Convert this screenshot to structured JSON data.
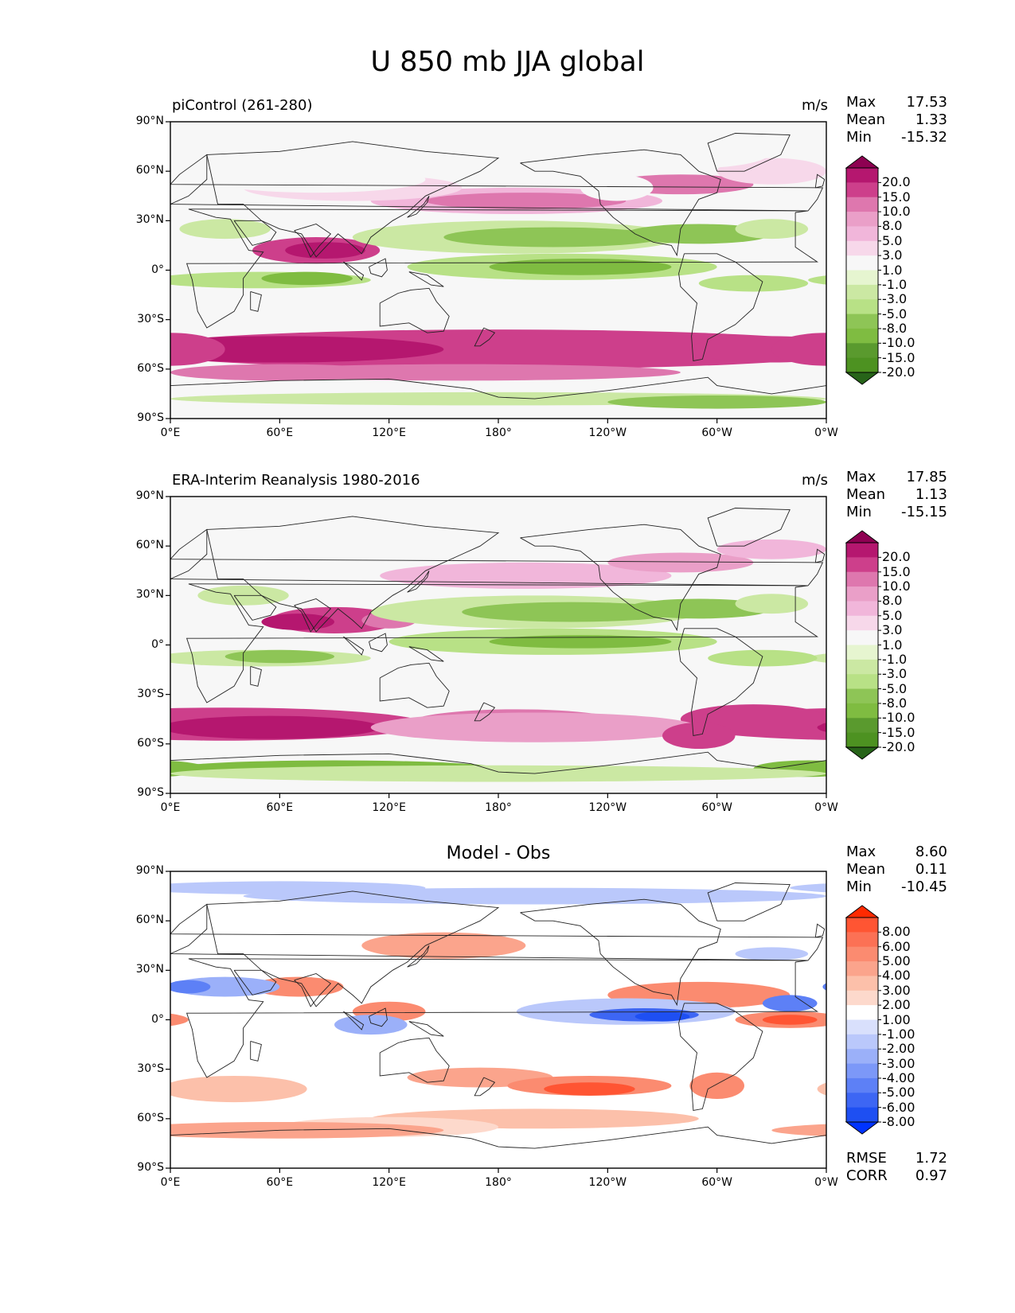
{
  "suptitle": "U 850 mb JJA global",
  "lat_ticks": [
    "90°N",
    "60°N",
    "30°N",
    "0°",
    "30°S",
    "60°S",
    "90°S"
  ],
  "lon_ticks": [
    "0°E",
    "60°E",
    "120°E",
    "180°",
    "120°W",
    "60°W",
    "0°W"
  ],
  "panels": [
    {
      "title_left": "piControl (261-280)",
      "title_right": "m/s",
      "title_center": "",
      "stats": [
        {
          "label": "Max",
          "value": "17.53"
        },
        {
          "label": "Mean",
          "value": "1.33"
        },
        {
          "label": "Min",
          "value": "-15.32"
        }
      ],
      "colorbar": {
        "labels": [
          "20.0",
          "15.0",
          "10.0",
          "8.0",
          "5.0",
          "3.0",
          "1.0",
          "-1.0",
          "-3.0",
          "-5.0",
          "-8.0",
          "-10.0",
          "-15.0",
          "-20.0"
        ],
        "colors": [
          "#8e0152",
          "#b5176f",
          "#cd3f8b",
          "#de77ae",
          "#ea9fc8",
          "#f1b6da",
          "#f7d8ea",
          "#f7f7f7",
          "#e6f5d0",
          "#cbe8a3",
          "#b8e186",
          "#8ec556",
          "#7fbc41",
          "#5a9a2e",
          "#4d9221",
          "#276419"
        ],
        "top_color": "#8e0152",
        "bottom_color": "#276419"
      }
    },
    {
      "title_left": "ERA-Interim Reanalysis 1980-2016",
      "title_right": "m/s",
      "title_center": "",
      "stats": [
        {
          "label": "Max",
          "value": "17.85"
        },
        {
          "label": "Mean",
          "value": "1.13"
        },
        {
          "label": "Min",
          "value": "-15.15"
        }
      ],
      "colorbar": {
        "labels": [
          "20.0",
          "15.0",
          "10.0",
          "8.0",
          "5.0",
          "3.0",
          "1.0",
          "-1.0",
          "-3.0",
          "-5.0",
          "-8.0",
          "-10.0",
          "-15.0",
          "-20.0"
        ],
        "colors": [
          "#8e0152",
          "#b5176f",
          "#cd3f8b",
          "#de77ae",
          "#ea9fc8",
          "#f1b6da",
          "#f7d8ea",
          "#f7f7f7",
          "#e6f5d0",
          "#cbe8a3",
          "#b8e186",
          "#8ec556",
          "#7fbc41",
          "#5a9a2e",
          "#4d9221",
          "#276419"
        ],
        "top_color": "#8e0152",
        "bottom_color": "#276419"
      }
    },
    {
      "title_left": "",
      "title_right": "",
      "title_center": "Model - Obs",
      "stats": [
        {
          "label": "Max",
          "value": "8.60"
        },
        {
          "label": "Mean",
          "value": "0.11"
        },
        {
          "label": "Min",
          "value": "-10.45"
        }
      ],
      "bottom_stats": [
        {
          "label": "RMSE",
          "value": "1.72"
        },
        {
          "label": "CORR",
          "value": "0.97"
        }
      ],
      "colorbar": {
        "labels": [
          "8.00",
          "6.00",
          "5.00",
          "4.00",
          "3.00",
          "2.00",
          "1.00",
          "-1.00",
          "-2.00",
          "-3.00",
          "-4.00",
          "-5.00",
          "-6.00",
          "-8.00"
        ],
        "colors": [
          "#ff2a00",
          "#ff5533",
          "#fc7155",
          "#fb8b70",
          "#fba48c",
          "#fcc0aa",
          "#fdd9cc",
          "#ffffff",
          "#d9e0fc",
          "#bac8fb",
          "#9bb0f9",
          "#7c98f8",
          "#5d80f6",
          "#3d66f4",
          "#1e4ff2",
          "#0033ff"
        ],
        "top_color": "#ff2a00",
        "bottom_color": "#0033ff"
      }
    }
  ]
}
